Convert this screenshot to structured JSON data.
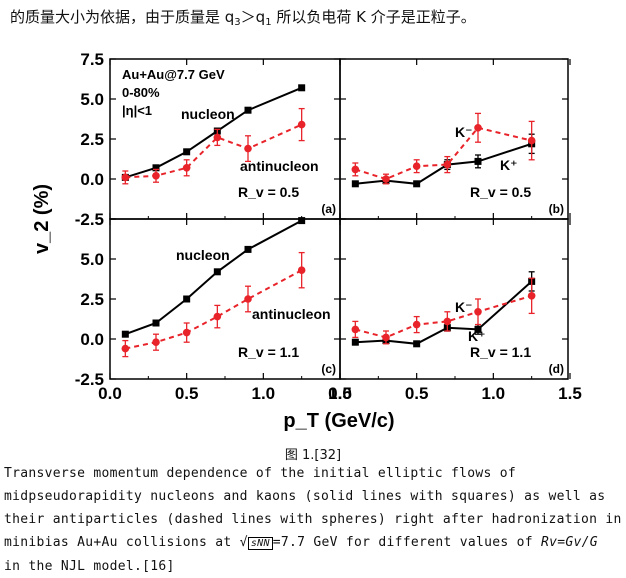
{
  "top_text": {
    "part1": "的质量大小为依据，由于质量是 q",
    "sub1": "3",
    "part2": "＞q",
    "sub2": "1",
    "part3": "  所以负电荷 K 介子是正粒子。"
  },
  "figure_caption": "图 1.[32]",
  "description": {
    "text_before": "Transverse momentum dependence of the initial elliptic flows of midpseudorapidity nucleons and kaons (solid lines with squares) as well as their antiparticles (dashed lines with spheres) right after hadronization in minibias Au+Au collisions at √",
    "boxed": "sNN",
    "text_mid": "=7.7  GeV for different values of ",
    "rv_formula": "Rv=Gv/G",
    "text_after": " in the NJL model.[16]"
  },
  "chart_data": {
    "type": "scatter",
    "xlabel": "p_T (GeV/c)",
    "ylabel": "v_2 (%)",
    "xlim": [
      0,
      1.5
    ],
    "ylim": [
      -2.5,
      7.5
    ],
    "x_ticks": [
      "0.0",
      "0.5",
      "1.0",
      "1.5"
    ],
    "y_ticks": [
      "-2.5",
      "0.0",
      "2.5",
      "5.0",
      "7.5"
    ],
    "annotation_header": [
      "Au+Au@7.7 GeV",
      "0-80%",
      "|η|<1"
    ],
    "panels": [
      {
        "id": "(a)",
        "rv_label": "R_v = 0.5",
        "series": [
          {
            "name": "nucleon",
            "style": "solid-square",
            "color": "#000000",
            "x": [
              0.1,
              0.3,
              0.5,
              0.7,
              0.9,
              1.25
            ],
            "y": [
              0.1,
              0.7,
              1.7,
              3.0,
              4.3,
              5.7
            ],
            "err": [
              0,
              0,
              0,
              0.15,
              0,
              0
            ]
          },
          {
            "name": "antinucleon",
            "style": "dashed-circle",
            "color": "#e8232a",
            "x": [
              0.1,
              0.3,
              0.5,
              0.7,
              0.9,
              1.25
            ],
            "y": [
              0.1,
              0.2,
              0.7,
              2.6,
              1.9,
              3.4
            ],
            "err": [
              0.4,
              0.4,
              0.5,
              0.5,
              0.8,
              1.0
            ]
          }
        ]
      },
      {
        "id": "(b)",
        "rv_label": "R_v = 0.5",
        "series": [
          {
            "name": "K⁺",
            "style": "solid-square",
            "color": "#000000",
            "x": [
              0.1,
              0.3,
              0.5,
              0.7,
              0.9,
              1.25
            ],
            "y": [
              -0.3,
              -0.1,
              -0.3,
              0.9,
              1.1,
              2.2
            ],
            "err": [
              0,
              0,
              0,
              0.3,
              0.4,
              0.6
            ]
          },
          {
            "name": "K⁻",
            "style": "dashed-circle",
            "color": "#e8232a",
            "x": [
              0.1,
              0.3,
              0.5,
              0.7,
              0.9,
              1.25
            ],
            "y": [
              0.6,
              0.0,
              0.8,
              0.9,
              3.2,
              2.4
            ],
            "err": [
              0.4,
              0.3,
              0.4,
              0.5,
              0.9,
              1.2
            ]
          }
        ]
      },
      {
        "id": "(c)",
        "rv_label": "R_v = 1.1",
        "series": [
          {
            "name": "nucleon",
            "style": "solid-square",
            "color": "#000000",
            "x": [
              0.1,
              0.3,
              0.5,
              0.7,
              0.9,
              1.25
            ],
            "y": [
              0.3,
              1.0,
              2.5,
              4.2,
              5.6,
              7.4
            ],
            "err": [
              0,
              0,
              0,
              0,
              0,
              0
            ]
          },
          {
            "name": "antinucleon",
            "style": "dashed-circle",
            "color": "#e8232a",
            "x": [
              0.1,
              0.3,
              0.5,
              0.7,
              0.9,
              1.25
            ],
            "y": [
              -0.6,
              -0.2,
              0.4,
              1.4,
              2.5,
              4.3
            ],
            "err": [
              0.5,
              0.5,
              0.6,
              0.7,
              0.8,
              1.1
            ]
          }
        ]
      },
      {
        "id": "(d)",
        "rv_label": "R_v = 1.1",
        "series": [
          {
            "name": "K⁺",
            "style": "solid-square",
            "color": "#000000",
            "x": [
              0.1,
              0.3,
              0.5,
              0.7,
              0.9,
              1.25
            ],
            "y": [
              -0.2,
              -0.1,
              -0.3,
              0.7,
              0.6,
              3.6
            ],
            "err": [
              0,
              0,
              0,
              0.2,
              0.3,
              0.6
            ]
          },
          {
            "name": "K⁻",
            "style": "dashed-circle",
            "color": "#e8232a",
            "x": [
              0.1,
              0.3,
              0.5,
              0.7,
              0.9,
              1.25
            ],
            "y": [
              0.6,
              0.1,
              0.9,
              1.1,
              1.7,
              2.7
            ],
            "err": [
              0.5,
              0.4,
              0.5,
              0.6,
              0.8,
              1.1
            ]
          }
        ]
      }
    ]
  }
}
